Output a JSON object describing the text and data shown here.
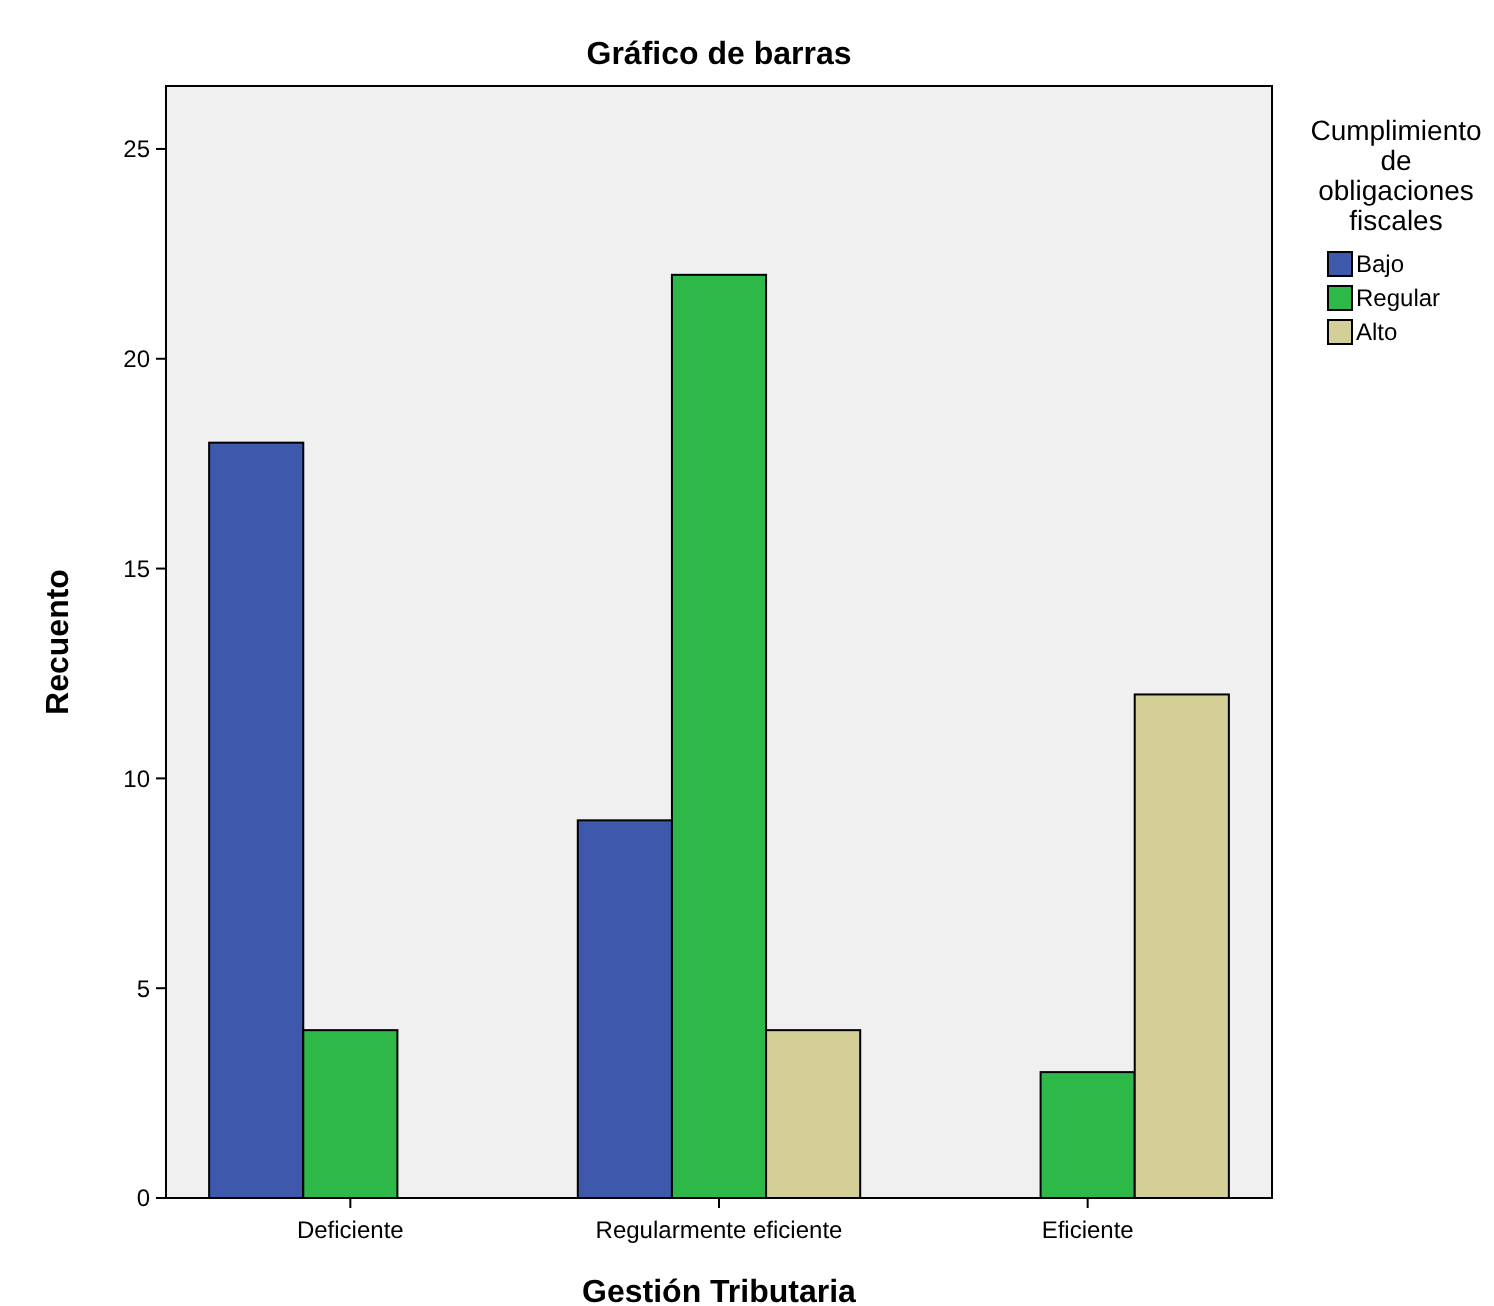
{
  "chart_data": {
    "type": "bar",
    "title": "Gráfico de barras",
    "xlabel": "Gestión Tributaria",
    "ylabel": "Recuento",
    "legend_title": "Cumplimiento de obligaciones fiscales",
    "categories": [
      "Deficiente",
      "Regularmente eficiente",
      "Eficiente"
    ],
    "series": [
      {
        "name": "Bajo",
        "color": "#3e58ac",
        "values": [
          18,
          9,
          null
        ]
      },
      {
        "name": "Regular",
        "color": "#2eb848",
        "values": [
          4,
          22,
          3
        ]
      },
      {
        "name": "Alto",
        "color": "#d4ce97",
        "values": [
          null,
          4,
          12
        ]
      }
    ],
    "ylim": [
      0,
      26.5
    ],
    "yticks": [
      0,
      5,
      10,
      15,
      20,
      25
    ],
    "grid": false,
    "legend": "right"
  }
}
